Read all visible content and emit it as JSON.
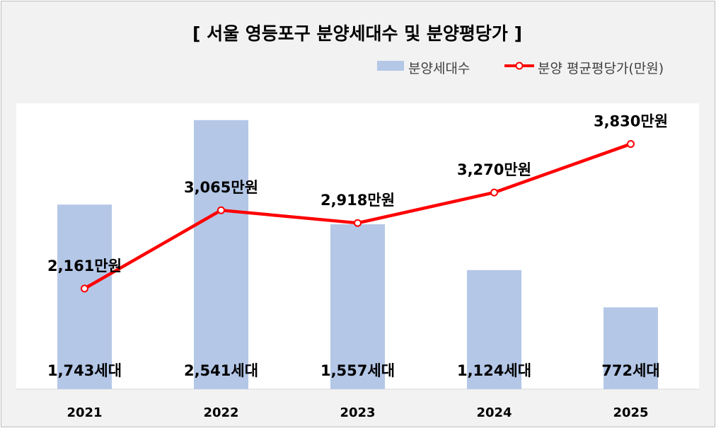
{
  "chart_data": {
    "type": "bar+line",
    "title": "[ 서울 영등포구 분양세대수 및 분양평당가 ]",
    "categories": [
      "2021",
      "2022",
      "2023",
      "2024",
      "2025"
    ],
    "series": [
      {
        "name": "분양세대수",
        "type": "bar",
        "values": [
          1743,
          2541,
          1557,
          1124,
          772
        ],
        "labels": [
          "1,743세대",
          "2,541세대",
          "1,557세대",
          "1,124세대",
          "772세대"
        ],
        "color": "#b4c7e7"
      },
      {
        "name": "분양 평균평당가(만원)",
        "type": "line",
        "values": [
          2161,
          3065,
          2918,
          3270,
          3830
        ],
        "labels": [
          "2,161만원",
          "3,065만원",
          "2,918만원",
          "3,270만원",
          "3,830만원"
        ],
        "color": "#ff0000"
      }
    ],
    "bar_axis_range": [
      0,
      2700
    ],
    "line_axis_range": [
      1000,
      4300
    ],
    "grid": false,
    "legend_position": "top-right"
  }
}
